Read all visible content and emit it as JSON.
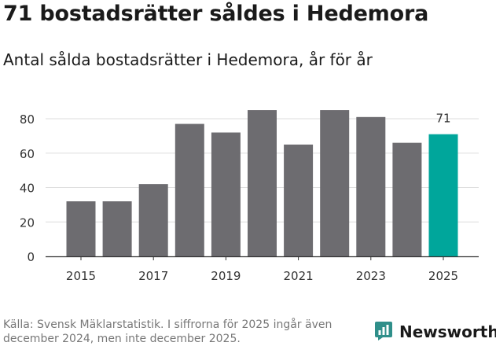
{
  "title": "71 bostadsrätter såldes i Hedemora",
  "subtitle": "Antal sålda bostadsrätter i Hedemora, år för år",
  "source": "Källa: Svensk Mäklarstatistik. I siffrorna för 2025 ingår även december 2024, men inte december 2025.",
  "brand": "Newsworthy",
  "colors": {
    "bar": "#6d6c70",
    "highlight": "#00a69b",
    "grid": "#dddddd",
    "axis": "#333333",
    "brand": "#2f8f8a"
  },
  "chart_data": {
    "type": "bar",
    "title": "71 bostadsrätter såldes i Hedemora",
    "subtitle": "Antal sålda bostadsrätter i Hedemora, år för år",
    "categories": [
      "2015",
      "2016",
      "2017",
      "2018",
      "2019",
      "2020",
      "2021",
      "2022",
      "2023",
      "2024",
      "2025"
    ],
    "values": [
      32,
      32,
      42,
      77,
      72,
      85,
      65,
      85,
      81,
      66,
      71
    ],
    "highlight_index": 10,
    "data_labels": {
      "10": "71"
    },
    "x_tick_labels": [
      "2015",
      "2017",
      "2019",
      "2021",
      "2023",
      "2025"
    ],
    "y_ticks": [
      0,
      20,
      40,
      60,
      80
    ],
    "ylim": [
      0,
      90
    ],
    "xlabel": "",
    "ylabel": "",
    "grid": true
  }
}
